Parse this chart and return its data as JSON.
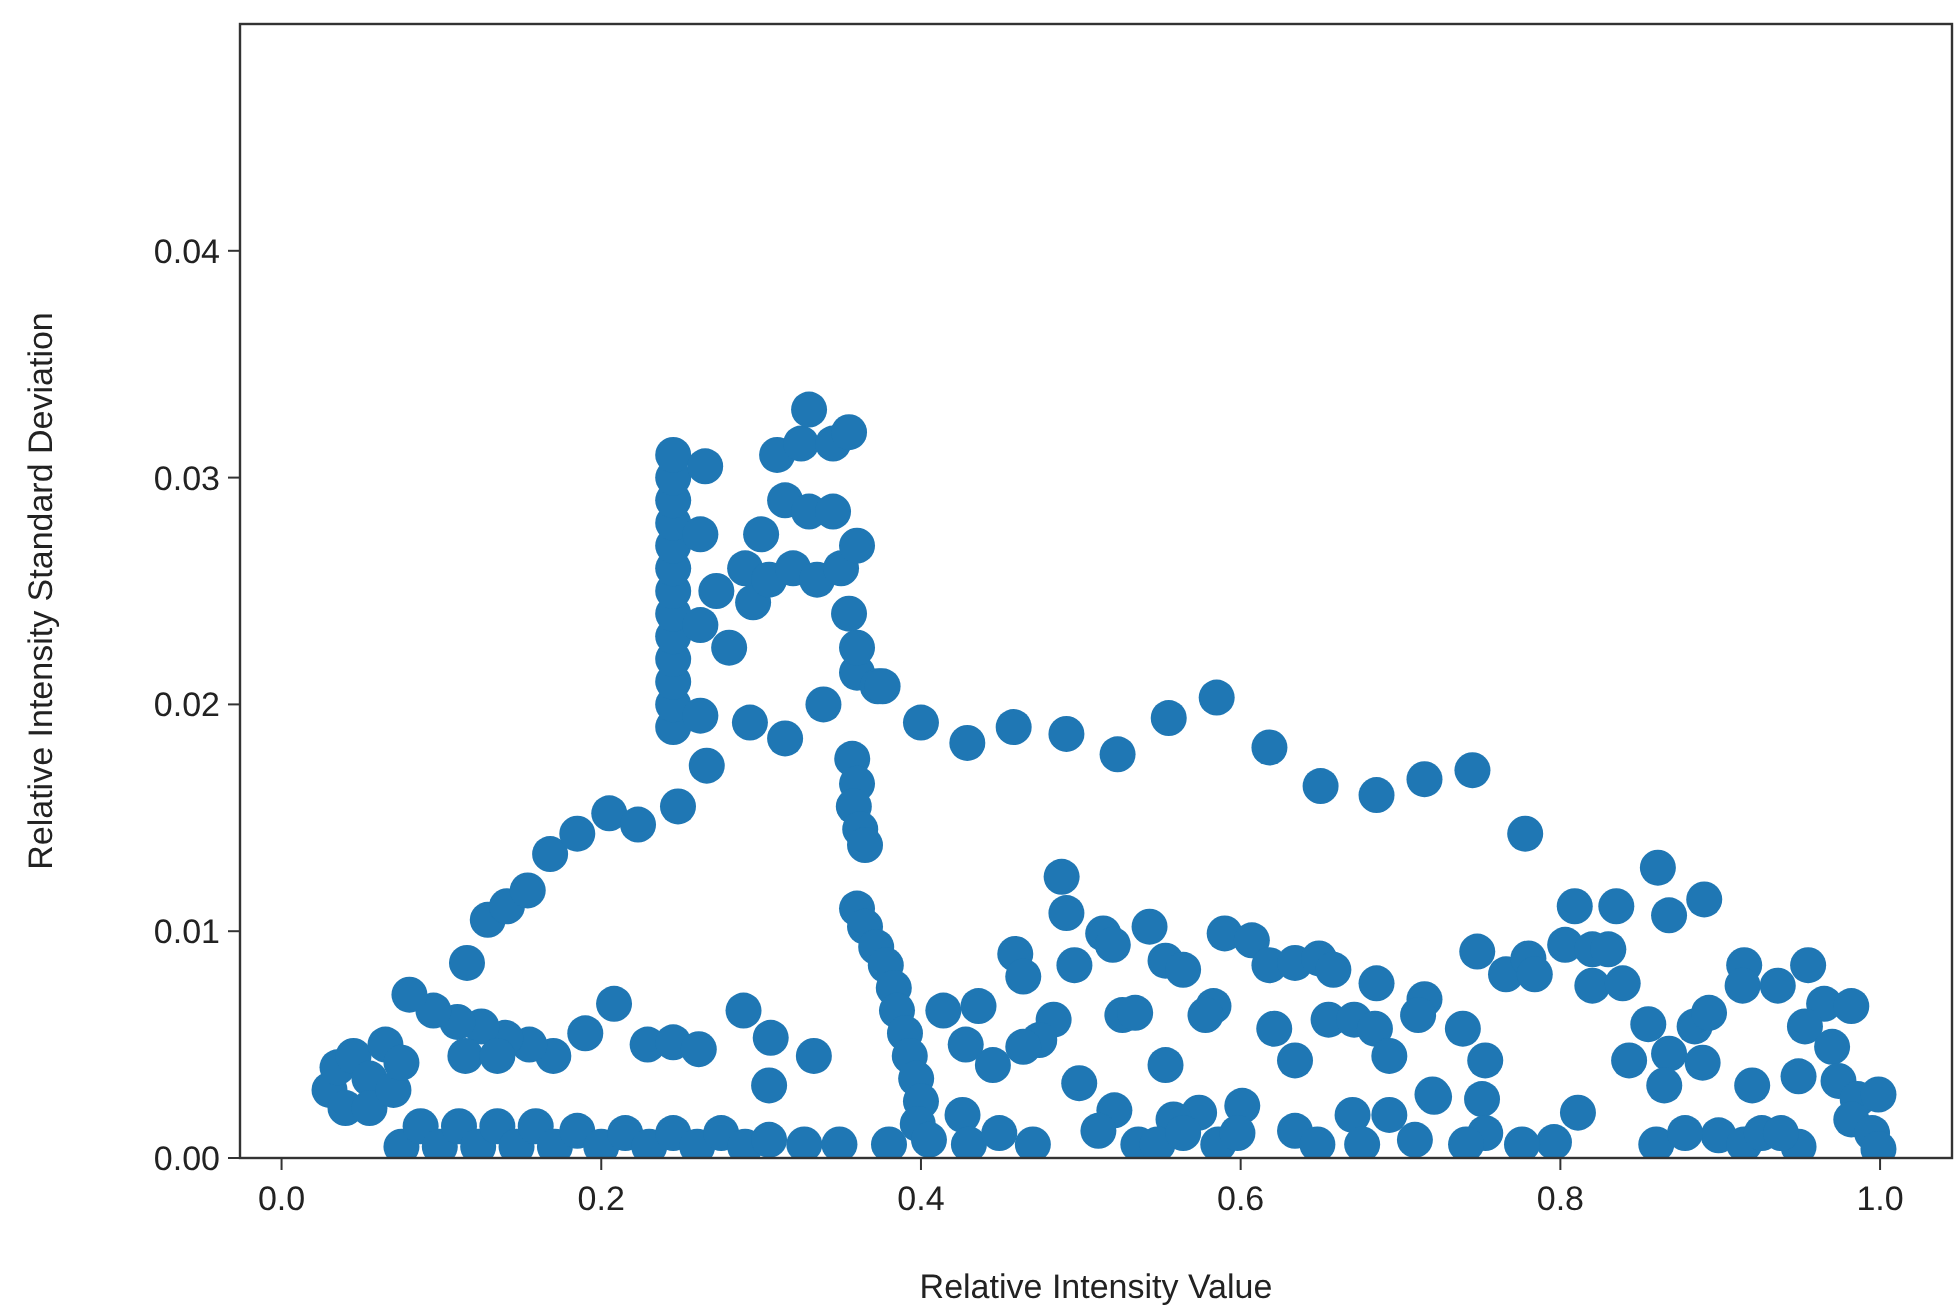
{
  "chart_data": {
    "type": "scatter",
    "xlabel": "Relative Intensity Value",
    "ylabel": "Relative Intensity Standard Deviation",
    "xlim": [
      -0.026,
      1.045
    ],
    "ylim": [
      0,
      0.05
    ],
    "xticks": [
      {
        "value": 0,
        "label": "0.0"
      },
      {
        "value": 0.2,
        "label": "0.2"
      },
      {
        "value": 0.4,
        "label": "0.4"
      },
      {
        "value": 0.6,
        "label": "0.6"
      },
      {
        "value": 0.8,
        "label": "0.8"
      },
      {
        "value": 1,
        "label": "1.0"
      }
    ],
    "yticks": [
      {
        "value": 0,
        "label": "0.00"
      },
      {
        "value": 0.01,
        "label": "0.01"
      },
      {
        "value": 0.02,
        "label": "0.02"
      },
      {
        "value": 0.03,
        "label": "0.03"
      },
      {
        "value": 0.04,
        "label": "0.04"
      }
    ],
    "grid": false,
    "marker": "circle",
    "series": [
      {
        "color": "#1f77b4",
        "x": [
          0.116,
          0.129,
          0.141,
          0.154,
          0.168,
          0.185,
          0.205,
          0.223,
          0.248,
          0.266,
          0.293,
          0.315,
          0.339,
          0.36,
          0.373,
          0.245,
          0.245,
          0.245,
          0.245,
          0.245,
          0.245,
          0.245,
          0.245,
          0.245,
          0.245,
          0.245,
          0.245,
          0.245,
          0.262,
          0.262,
          0.262,
          0.265,
          0.28,
          0.295,
          0.272,
          0.29,
          0.305,
          0.32,
          0.335,
          0.35,
          0.3,
          0.315,
          0.33,
          0.345,
          0.36,
          0.31,
          0.325,
          0.33,
          0.345,
          0.355,
          0.355,
          0.36,
          0.357,
          0.36,
          0.358,
          0.362,
          0.365,
          0.36,
          0.365,
          0.372,
          0.378,
          0.383,
          0.385,
          0.39,
          0.393,
          0.397,
          0.4,
          0.398,
          0.405,
          0.208,
          0.19,
          0.229,
          0.245,
          0.261,
          0.289,
          0.306,
          0.333,
          0.305,
          0.17,
          0.155,
          0.14,
          0.125,
          0.11,
          0.095,
          0.08,
          0.115,
          0.135,
          0.03,
          0.035,
          0.045,
          0.055,
          0.065,
          0.04,
          0.055,
          0.07,
          0.075,
          0.075,
          0.087,
          0.099,
          0.111,
          0.123,
          0.135,
          0.147,
          0.159,
          0.171,
          0.185,
          0.2,
          0.215,
          0.23,
          0.245,
          0.26,
          0.275,
          0.29,
          0.305,
          0.327,
          0.349,
          0.376,
          0.4,
          0.429,
          0.458,
          0.491,
          0.523,
          0.555,
          0.585,
          0.618,
          0.65,
          0.685,
          0.715,
          0.488,
          0.491,
          0.514,
          0.52,
          0.543,
          0.459,
          0.464,
          0.496,
          0.553,
          0.564,
          0.59,
          0.607,
          0.618,
          0.634,
          0.649,
          0.658,
          0.685,
          0.715,
          0.711,
          0.583,
          0.578,
          0.526,
          0.534,
          0.414,
          0.436,
          0.483,
          0.474,
          0.464,
          0.428,
          0.445,
          0.499,
          0.553,
          0.621,
          0.634,
          0.655,
          0.671,
          0.684,
          0.693,
          0.601,
          0.574,
          0.558,
          0.521,
          0.511,
          0.536,
          0.47,
          0.634,
          0.67,
          0.693,
          0.709,
          0.426,
          0.72,
          0.745,
          0.778,
          0.861,
          0.809,
          0.835,
          0.868,
          0.89,
          0.748,
          0.766,
          0.78,
          0.784,
          0.803,
          0.82,
          0.83,
          0.82,
          0.839,
          0.739,
          0.753,
          0.721,
          0.751,
          0.753,
          0.811,
          0.796,
          0.855,
          0.843,
          0.868,
          0.865,
          0.889,
          0.884,
          0.893,
          0.915,
          0.914,
          0.936,
          0.955,
          0.965,
          0.982,
          0.953,
          0.97,
          0.949,
          0.92,
          0.974,
          0.986,
          0.999,
          0.982,
          0.995,
          0.899,
          0.915,
          0.926,
          0.949,
          0.999,
          0.38,
          0.43,
          0.449,
          0.548,
          0.564,
          0.586,
          0.598,
          0.648,
          0.676,
          0.741,
          0.776,
          0.86,
          0.878,
          0.938
        ],
        "values": [
          0.0086,
          0.0105,
          0.0111,
          0.0118,
          0.0134,
          0.0143,
          0.0152,
          0.0147,
          0.0155,
          0.0173,
          0.0192,
          0.0185,
          0.02,
          0.0214,
          0.0208,
          0.019,
          0.02,
          0.021,
          0.022,
          0.023,
          0.024,
          0.025,
          0.026,
          0.027,
          0.028,
          0.029,
          0.03,
          0.031,
          0.0195,
          0.0235,
          0.0275,
          0.0305,
          0.0225,
          0.0245,
          0.025,
          0.026,
          0.0255,
          0.026,
          0.0255,
          0.026,
          0.0275,
          0.029,
          0.0285,
          0.0285,
          0.027,
          0.031,
          0.0315,
          0.033,
          0.0315,
          0.032,
          0.024,
          0.0225,
          0.0176,
          0.0165,
          0.0155,
          0.0145,
          0.0138,
          0.011,
          0.0102,
          0.0093,
          0.0085,
          0.0075,
          0.0065,
          0.0055,
          0.0045,
          0.0035,
          0.0025,
          0.0015,
          0.0008,
          0.0068,
          0.0055,
          0.005,
          0.0051,
          0.0048,
          0.0065,
          0.0053,
          0.0045,
          0.0032,
          0.0045,
          0.005,
          0.0053,
          0.0058,
          0.006,
          0.0065,
          0.0072,
          0.0045,
          0.0045,
          0.003,
          0.004,
          0.0045,
          0.0035,
          0.005,
          0.0022,
          0.0022,
          0.003,
          0.0042,
          0.0005,
          0.0014,
          0.0005,
          0.0014,
          0.0005,
          0.0014,
          0.0005,
          0.0014,
          0.0005,
          0.0012,
          0.0005,
          0.0011,
          0.0005,
          0.0011,
          0.0005,
          0.0011,
          0.0005,
          0.0008,
          0.0006,
          0.0006,
          0.0208,
          0.0192,
          0.0183,
          0.019,
          0.0187,
          0.0178,
          0.0194,
          0.0203,
          0.0181,
          0.0164,
          0.016,
          0.0167,
          0.0124,
          0.0108,
          0.0099,
          0.0094,
          0.0102,
          0.009,
          0.008,
          0.0085,
          0.0087,
          0.0083,
          0.0099,
          0.0096,
          0.0085,
          0.0086,
          0.0088,
          0.0083,
          0.0077,
          0.007,
          0.0063,
          0.0067,
          0.0063,
          0.0063,
          0.0064,
          0.0065,
          0.0067,
          0.0061,
          0.0052,
          0.0049,
          0.005,
          0.0041,
          0.0033,
          0.0041,
          0.0057,
          0.0043,
          0.0061,
          0.0061,
          0.0057,
          0.0045,
          0.0023,
          0.002,
          0.0017,
          0.0021,
          0.0012,
          0.0006,
          0.0006,
          0.0012,
          0.0019,
          0.0019,
          0.0008,
          0.0019,
          0.0028,
          0.0171,
          0.0143,
          0.0128,
          0.0111,
          0.0111,
          0.0107,
          0.0114,
          0.0091,
          0.0081,
          0.0088,
          0.0081,
          0.0094,
          0.0092,
          0.0092,
          0.0076,
          0.0077,
          0.0057,
          0.0043,
          0.0027,
          0.0026,
          0.0011,
          0.002,
          0.0007,
          0.0059,
          0.0043,
          0.0046,
          0.0032,
          0.0042,
          0.0058,
          0.0064,
          0.0085,
          0.0076,
          0.0076,
          0.0085,
          0.0068,
          0.0067,
          0.0058,
          0.0049,
          0.0036,
          0.0032,
          0.0034,
          0.0026,
          0.0028,
          0.0017,
          0.0011,
          0.001,
          0.0006,
          0.0011,
          0.0005,
          0.0004,
          0.0006,
          0.0006,
          0.0011,
          0.0006,
          0.0011,
          0.0006,
          0.0011,
          0.0006,
          0.0006,
          0.0006,
          0.0006,
          0.0006,
          0.0011,
          0.0011
        ]
      }
    ]
  }
}
